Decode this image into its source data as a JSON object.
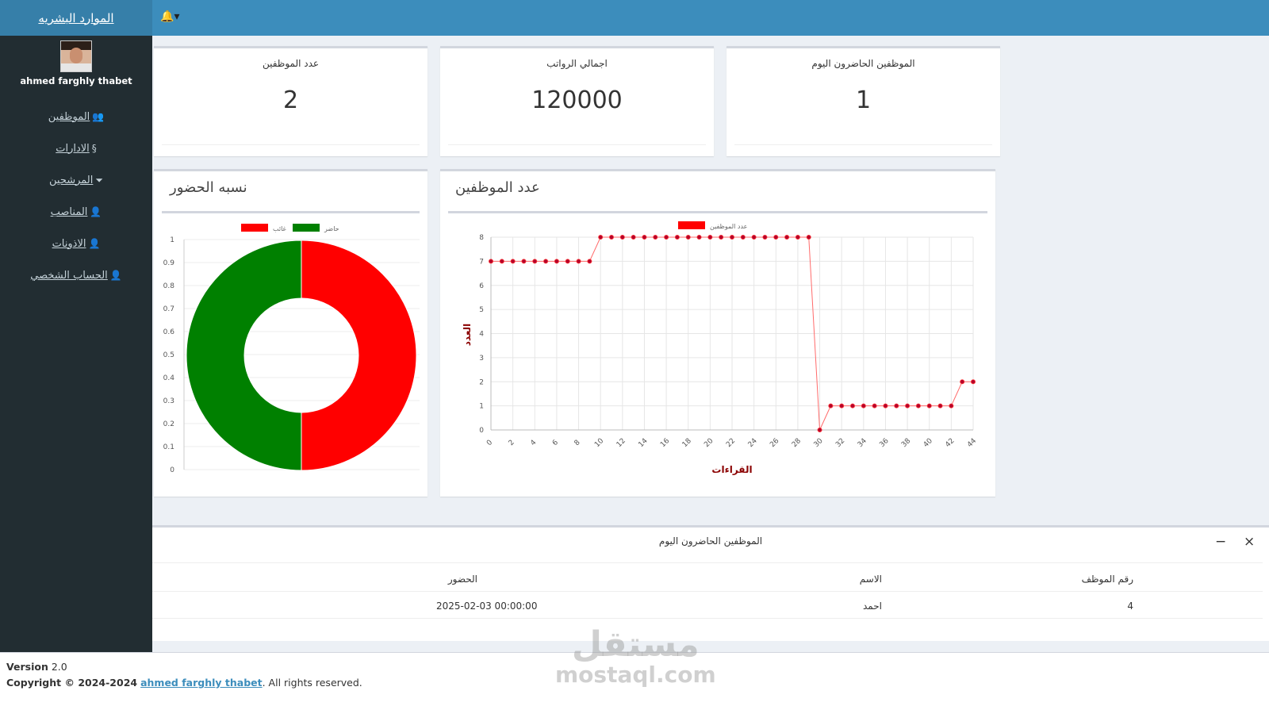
{
  "sidebar": {
    "brand": "الموارد البشريه",
    "user_name": "ahmed farghly thabet",
    "items": [
      {
        "label": "الموظفين",
        "icon": "users-icon",
        "glyph": "👥"
      },
      {
        "label": "الادارات",
        "icon": "section-icon",
        "glyph": "§"
      },
      {
        "label": "المرشحين",
        "icon": "filter-icon",
        "glyph": "⏷"
      },
      {
        "label": "المناصب",
        "icon": "user-tie-icon",
        "glyph": "👤"
      },
      {
        "label": "الاذونات",
        "icon": "user-cog-icon",
        "glyph": "👤"
      },
      {
        "label": "الحساب الشخصي",
        "icon": "user-icon",
        "glyph": "👤"
      }
    ]
  },
  "topbar": {
    "bell_glyph": "🔔",
    "caret": "▾"
  },
  "stats": [
    {
      "label": "عدد الموظفين",
      "value": "2"
    },
    {
      "label": "اجمالي الرواتب",
      "value": "120000"
    },
    {
      "label": "الموظفين الحاضرون اليوم",
      "value": "1"
    }
  ],
  "donut_title": "نسبه الحضور",
  "line_title": "عدد الموظفين",
  "chart_data": [
    {
      "type": "pie",
      "variant": "doughnut",
      "labels": [
        "غائب",
        "حاضر"
      ],
      "values": [
        1,
        1
      ],
      "colors": [
        "#ff0000",
        "#008000"
      ],
      "legend": "top",
      "yticks": [
        "1",
        "0.9",
        "0.8",
        "0.7",
        "0.6",
        "0.5",
        "0.4",
        "0.3",
        "0.2",
        "0.1",
        "0"
      ]
    },
    {
      "type": "line",
      "series": [
        {
          "name": "عدد الموظفين",
          "color": "#ff0000",
          "values": [
            7,
            7,
            7,
            7,
            7,
            7,
            7,
            7,
            7,
            7,
            8,
            8,
            8,
            8,
            8,
            8,
            8,
            8,
            8,
            8,
            8,
            8,
            8,
            8,
            8,
            8,
            8,
            8,
            8,
            8,
            0,
            1,
            1,
            1,
            1,
            1,
            1,
            1,
            1,
            1,
            1,
            1,
            1,
            2,
            2
          ]
        }
      ],
      "xlabel": "القراءات",
      "ylabel": "العدد",
      "xlim": [
        0,
        44
      ],
      "ylim": [
        0,
        8
      ],
      "legend": "top",
      "grid": true
    }
  ],
  "table": {
    "title": "الموظفين الحاضرون اليوم",
    "minimize": "−",
    "close": "×",
    "headers": {
      "id": "رقم الموظف",
      "name": "الاسم",
      "attendance": "الحضور"
    },
    "rows": [
      {
        "id": "4",
        "name": "احمد",
        "attendance": "2025-02-03 00:00:00"
      }
    ]
  },
  "footer": {
    "version_label": "Version",
    "version": "2.0",
    "copyright_prefix": "Copyright © 2024-2024",
    "author": "ahmed farghly thabet",
    "suffix": ". All rights reserved."
  },
  "watermark": {
    "arabic": "مستقل",
    "latin": "mostaql.com"
  }
}
